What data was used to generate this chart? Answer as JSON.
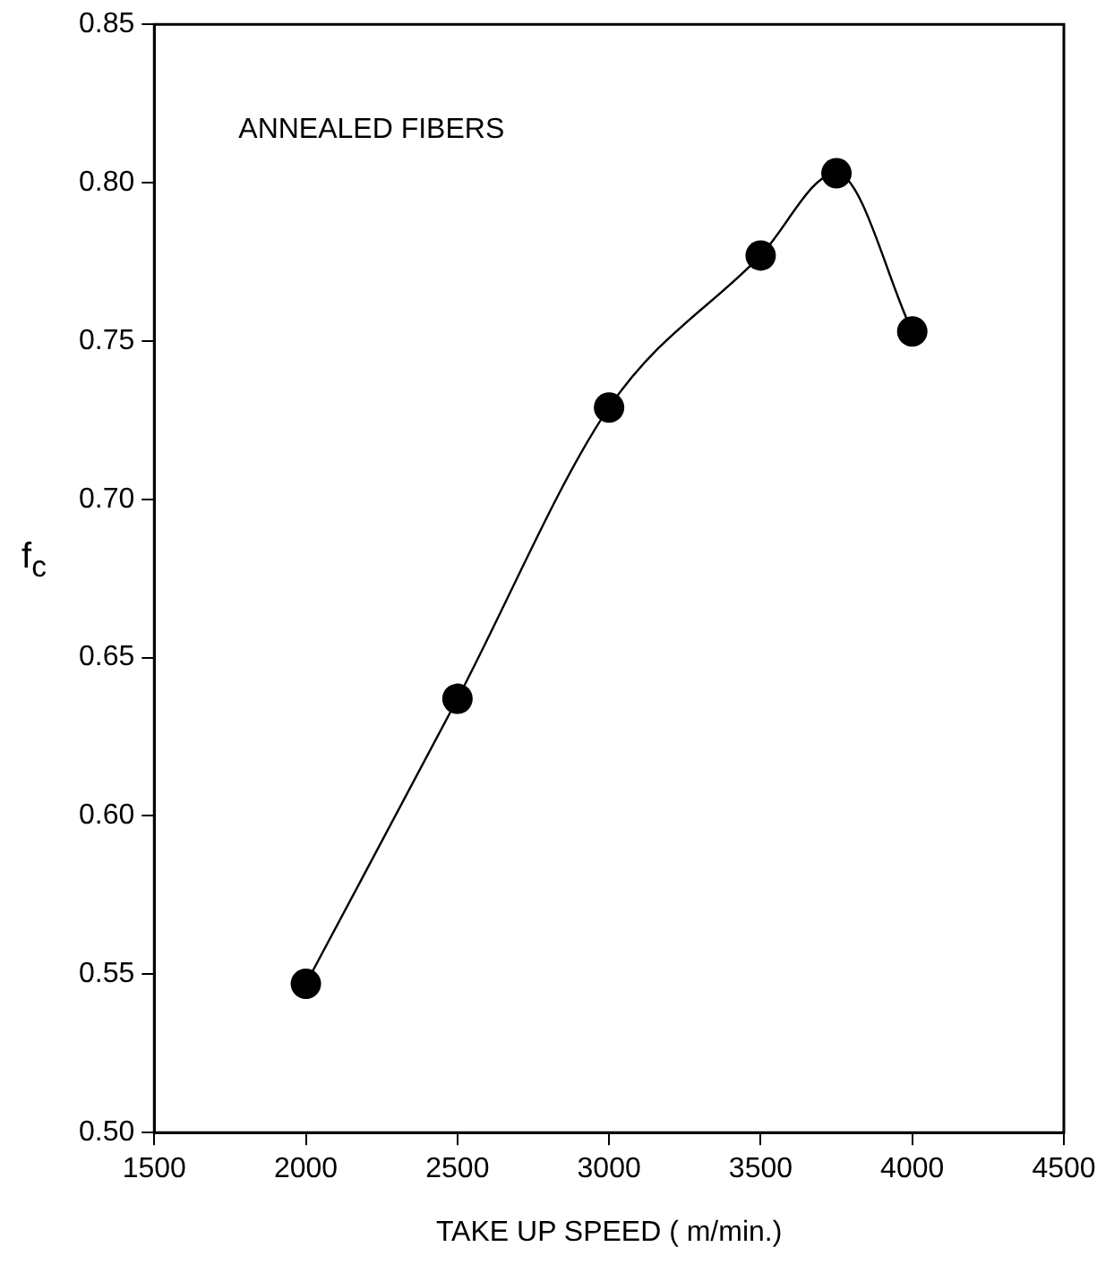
{
  "chart_data": {
    "type": "line",
    "xlabel": "TAKE UP SPEED ( m/min.)",
    "ylabel": "f$_{c}$",
    "annotations": [
      "ANNEALED FIBERS"
    ],
    "x": [
      2000,
      2500,
      3000,
      3500,
      3750,
      4000
    ],
    "series": [
      {
        "color": "#000000",
        "values": [
          0.547,
          0.637,
          0.729,
          0.777,
          0.803,
          0.753
        ]
      }
    ],
    "xlim": [
      1500,
      4500
    ],
    "xticks": [
      1500,
      2000,
      2500,
      3000,
      3500,
      4000,
      4500
    ],
    "ylim": [
      0.5,
      0.85
    ],
    "yticks": [
      {
        "value": 0.5,
        "label": "0.50"
      },
      0.55,
      {
        "value": 0.6,
        "label": "0.60"
      },
      0.65,
      {
        "value": 0.7,
        "label": "0.70"
      },
      0.75,
      {
        "value": 0.8,
        "label": "0.80"
      },
      0.85
    ],
    "grid": false,
    "legend": false,
    "marker": "circle",
    "line_style": "solid"
  }
}
